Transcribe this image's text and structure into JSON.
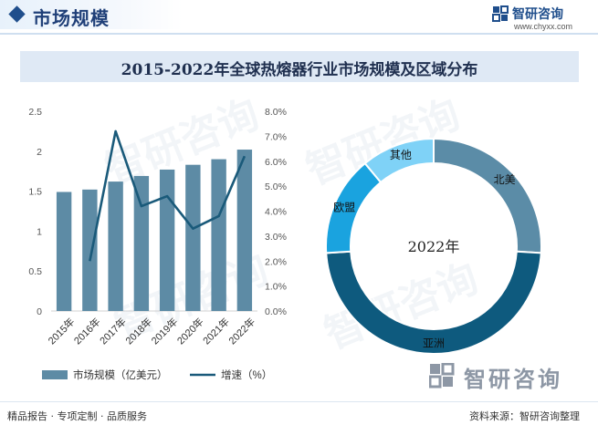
{
  "header": {
    "title": "市场规模",
    "logo_name": "智研咨询",
    "logo_url": "www.chyxx.com"
  },
  "chart_title": "2015-2022年全球热熔器行业市场规模及区域分布",
  "footer": {
    "left": "精品报告 · 专项定制 · 品质服务",
    "right": "资料来源：智研咨询整理",
    "brand": "智研咨询"
  },
  "colors": {
    "bar": "#5d8ba5",
    "line": "#1a5a7a",
    "brand": "#1f4e8c",
    "north_america": "#5b8ca7",
    "asia": "#0e5a7e",
    "europe": "#1aa3df",
    "other": "#7fd2f7"
  },
  "chart_data": [
    {
      "type": "bar",
      "categories": [
        "2015年",
        "2016年",
        "2017年",
        "2018年",
        "2019年",
        "2020年",
        "2021年",
        "2022年"
      ],
      "y_ticks": [
        "0",
        "0.5",
        "1",
        "1.5",
        "2",
        "2.5"
      ],
      "y2_ticks": [
        "0.0%",
        "1.0%",
        "2.0%",
        "3.0%",
        "4.0%",
        "5.0%",
        "6.0%",
        "7.0%",
        "8.0%"
      ],
      "ylim": [
        0,
        2.5
      ],
      "y2lim": [
        0,
        8
      ],
      "series": [
        {
          "name": "市场规模（亿美元）",
          "type": "bar",
          "axis": "left",
          "values": [
            1.49,
            1.52,
            1.62,
            1.69,
            1.77,
            1.83,
            1.9,
            2.02
          ]
        },
        {
          "name": "增速（%）",
          "type": "line",
          "axis": "right",
          "values": [
            null,
            2.0,
            7.2,
            4.2,
            4.6,
            3.3,
            3.8,
            6.2
          ]
        }
      ]
    },
    {
      "type": "pie",
      "center_label": "2022年",
      "slices": [
        {
          "label": "北美",
          "value": 26
        },
        {
          "label": "亚洲",
          "value": 48
        },
        {
          "label": "欧盟",
          "value": 15
        },
        {
          "label": "其他",
          "value": 11
        }
      ]
    }
  ]
}
